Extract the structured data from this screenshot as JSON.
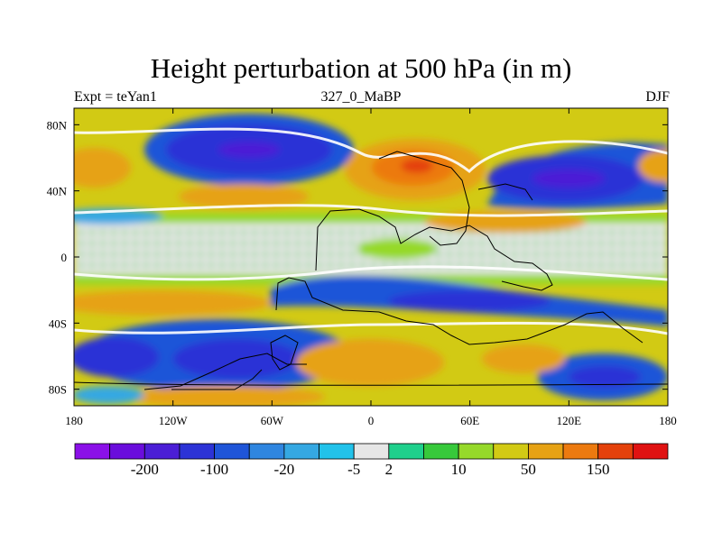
{
  "title": "Height perturbation at 500 hPa (in m)",
  "subtitle_left": "Expt = teYan1",
  "subtitle_center": "327_0_MaBP",
  "subtitle_right": "DJF",
  "map": {
    "projection": "cylindrical-equidistant",
    "lon_range": [
      -180,
      180
    ],
    "lat_range": [
      -90,
      90
    ],
    "lon_ticks": [
      {
        "value": -180,
        "label": "180"
      },
      {
        "value": -120,
        "label": "120W"
      },
      {
        "value": -60,
        "label": "60W"
      },
      {
        "value": 0,
        "label": "0"
      },
      {
        "value": 60,
        "label": "60E"
      },
      {
        "value": 120,
        "label": "120E"
      },
      {
        "value": 180,
        "label": "180"
      }
    ],
    "lat_ticks": [
      {
        "value": 80,
        "label": "80N"
      },
      {
        "value": 40,
        "label": "40N"
      },
      {
        "value": 0,
        "label": "0"
      },
      {
        "value": -40,
        "label": "40S"
      },
      {
        "value": -80,
        "label": "80S"
      }
    ]
  },
  "colorbar": {
    "colors": [
      "#8b10e8",
      "#6a0ddc",
      "#4b1ed6",
      "#2c33d6",
      "#1f55d8",
      "#2f86e0",
      "#35a8e2",
      "#22c2ea",
      "#e6e6e6",
      "#1fd08c",
      "#37c93b",
      "#96d92a",
      "#d2ca14",
      "#e6a214",
      "#ec7a0f",
      "#e4410b",
      "#e01212"
    ],
    "labels": [
      {
        "after_index": 1,
        "text": "-200"
      },
      {
        "after_index": 3,
        "text": "-100"
      },
      {
        "after_index": 5,
        "text": "-20"
      },
      {
        "after_index": 7,
        "text": "-5"
      },
      {
        "after_index": 8,
        "text": "2"
      },
      {
        "after_index": 10,
        "text": "10"
      },
      {
        "after_index": 12,
        "text": "50"
      },
      {
        "after_index": 14,
        "text": "150"
      }
    ]
  }
}
